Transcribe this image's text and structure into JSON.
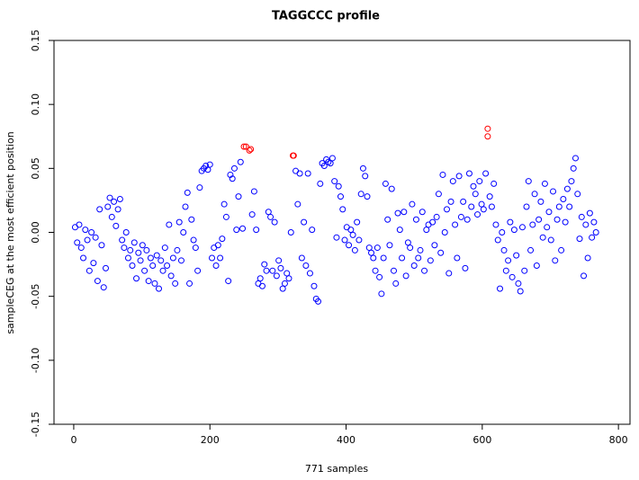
{
  "chart_data": {
    "type": "scatter",
    "title": "TAGGCCC profile",
    "x_label": "771 samples",
    "y_label": "sampleCEG at the most efficient position",
    "xlim": [
      -29,
      817
    ],
    "ylim": [
      -0.15,
      0.15
    ],
    "xticks": [
      0,
      200,
      400,
      600,
      800
    ],
    "yticks": [
      {
        "value": -0.15,
        "label": "-0.15"
      },
      {
        "value": -0.1,
        "label": "-0.10"
      },
      {
        "value": -0.05,
        "label": "-0.05"
      },
      {
        "value": 0,
        "label": "0.00"
      },
      0.05,
      {
        "value": 0.1,
        "label": "0.10"
      },
      0.15
    ],
    "series": [
      {
        "color": "#0000ff",
        "x": [
          2,
          5,
          8,
          11,
          14,
          17,
          20,
          23,
          26,
          29,
          32,
          35,
          38,
          41,
          44,
          47,
          50,
          53,
          56,
          59,
          62,
          65,
          68,
          71,
          74,
          77,
          80,
          83,
          86,
          89,
          92,
          95,
          98,
          101,
          104,
          107,
          110,
          113,
          116,
          119,
          122,
          125,
          128,
          131,
          134,
          137,
          140,
          143,
          146,
          149,
          152,
          155,
          158,
          161,
          164,
          167,
          170,
          173,
          176,
          179,
          182,
          185,
          188,
          191,
          194,
          197,
          200,
          203,
          206,
          209,
          212,
          215,
          218,
          221,
          224,
          227,
          230,
          233,
          236,
          239,
          242,
          245,
          248,
          262,
          265,
          268,
          271,
          274,
          277,
          280,
          283,
          286,
          289,
          292,
          295,
          298,
          301,
          304,
          307,
          310,
          313,
          316,
          319,
          326,
          329,
          332,
          335,
          338,
          341,
          344,
          347,
          350,
          353,
          356,
          359,
          362,
          365,
          368,
          371,
          374,
          377,
          380,
          383,
          386,
          389,
          392,
          395,
          398,
          401,
          404,
          407,
          410,
          413,
          416,
          419,
          422,
          425,
          428,
          431,
          434,
          437,
          440,
          443,
          446,
          449,
          452,
          455,
          458,
          461,
          464,
          467,
          470,
          473,
          476,
          479,
          482,
          485,
          488,
          491,
          494,
          497,
          500,
          503,
          506,
          509,
          512,
          515,
          518,
          521,
          524,
          527,
          530,
          533,
          536,
          539,
          542,
          545,
          548,
          551,
          554,
          557,
          560,
          563,
          566,
          569,
          572,
          575,
          578,
          581,
          584,
          587,
          590,
          593,
          596,
          599,
          602,
          605,
          611,
          614,
          617,
          620,
          623,
          626,
          629,
          632,
          635,
          638,
          641,
          644,
          647,
          650,
          653,
          656,
          659,
          662,
          665,
          668,
          671,
          674,
          677,
          680,
          683,
          686,
          689,
          692,
          695,
          698,
          701,
          704,
          707,
          710,
          713,
          716,
          719,
          722,
          725,
          728,
          731,
          734,
          737,
          740,
          743,
          746,
          749,
          752,
          755,
          758,
          761,
          764,
          767
        ],
        "values": [
          0.004,
          -0.008,
          0.006,
          -0.012,
          -0.02,
          0.002,
          -0.006,
          -0.03,
          0.0,
          -0.024,
          -0.004,
          -0.038,
          0.018,
          -0.01,
          -0.043,
          -0.028,
          0.02,
          0.027,
          0.012,
          0.024,
          0.005,
          0.018,
          0.026,
          -0.006,
          -0.012,
          0.0,
          -0.02,
          -0.014,
          -0.026,
          -0.008,
          -0.036,
          -0.016,
          -0.022,
          -0.01,
          -0.03,
          -0.014,
          -0.038,
          -0.02,
          -0.026,
          -0.04,
          -0.018,
          -0.044,
          -0.022,
          -0.03,
          -0.012,
          -0.026,
          0.006,
          -0.034,
          -0.02,
          -0.04,
          -0.014,
          0.008,
          -0.022,
          0.0,
          0.02,
          0.031,
          -0.04,
          0.01,
          -0.006,
          -0.012,
          -0.03,
          0.035,
          0.048,
          0.05,
          0.052,
          0.049,
          0.053,
          -0.02,
          -0.012,
          -0.026,
          -0.01,
          -0.02,
          -0.005,
          0.022,
          0.012,
          -0.038,
          0.045,
          0.042,
          0.05,
          0.002,
          0.028,
          0.055,
          0.003,
          0.014,
          0.032,
          0.002,
          -0.04,
          -0.036,
          -0.042,
          -0.025,
          -0.03,
          0.016,
          0.012,
          -0.03,
          0.008,
          -0.034,
          -0.022,
          -0.028,
          -0.044,
          -0.04,
          -0.032,
          -0.036,
          0.0,
          0.048,
          0.022,
          0.046,
          -0.02,
          0.008,
          -0.026,
          0.046,
          -0.032,
          0.002,
          -0.042,
          -0.052,
          -0.054,
          0.038,
          0.054,
          0.052,
          0.057,
          0.055,
          0.054,
          0.058,
          0.04,
          -0.004,
          0.036,
          0.028,
          0.018,
          -0.006,
          0.004,
          -0.01,
          0.002,
          -0.002,
          -0.014,
          0.008,
          -0.006,
          0.03,
          0.05,
          0.044,
          0.028,
          -0.012,
          -0.016,
          -0.02,
          -0.03,
          -0.012,
          -0.035,
          -0.048,
          -0.02,
          0.038,
          0.01,
          -0.01,
          0.034,
          -0.03,
          -0.04,
          0.015,
          0.002,
          -0.02,
          0.016,
          -0.034,
          -0.008,
          -0.012,
          0.022,
          -0.026,
          0.01,
          -0.02,
          -0.014,
          0.016,
          -0.03,
          0.002,
          0.006,
          -0.022,
          0.008,
          -0.01,
          0.012,
          0.03,
          -0.016,
          0.045,
          0.0,
          0.018,
          -0.032,
          0.024,
          0.04,
          0.006,
          -0.02,
          0.044,
          0.012,
          0.024,
          -0.028,
          0.01,
          0.046,
          0.02,
          0.036,
          0.03,
          0.014,
          0.04,
          0.022,
          0.018,
          0.046,
          0.028,
          0.02,
          0.038,
          0.006,
          -0.006,
          -0.044,
          0.0,
          -0.014,
          -0.03,
          -0.022,
          0.008,
          -0.035,
          0.002,
          -0.018,
          -0.04,
          -0.046,
          0.004,
          -0.03,
          0.02,
          0.04,
          -0.014,
          0.006,
          0.03,
          -0.026,
          0.01,
          0.024,
          -0.004,
          0.038,
          0.004,
          0.016,
          -0.006,
          0.032,
          -0.022,
          0.01,
          0.02,
          -0.014,
          0.026,
          0.008,
          0.034,
          0.02,
          0.04,
          0.05,
          0.058,
          0.03,
          -0.005,
          0.012,
          -0.034,
          0.006,
          -0.02,
          0.015,
          -0.004,
          0.008,
          0.0
        ]
      },
      {
        "color": "#ff0000",
        "x": [
          250,
          253,
          258,
          260,
          322,
          323,
          608,
          608
        ],
        "values": [
          0.067,
          0.067,
          0.064,
          0.065,
          0.06,
          0.06,
          0.081,
          0.075
        ]
      }
    ]
  }
}
